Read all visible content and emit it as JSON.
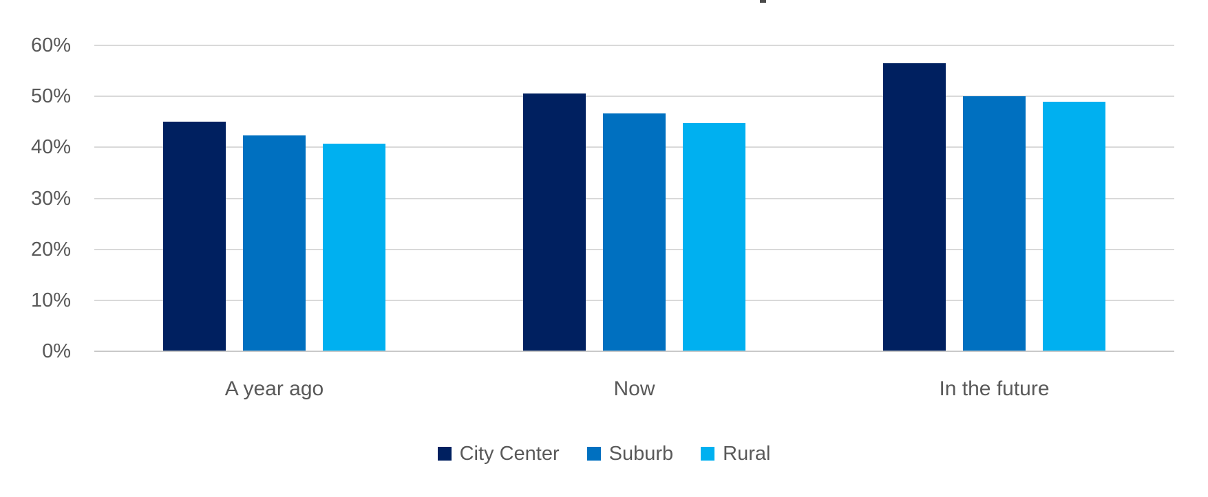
{
  "chart_data": {
    "type": "bar",
    "title": "",
    "categories": [
      "A year ago",
      "Now",
      "In the future"
    ],
    "series": [
      {
        "name": "City Center",
        "color": "#002060",
        "values": [
          45,
          50.6,
          56.5
        ]
      },
      {
        "name": "Suburb",
        "color": "#0070C0",
        "values": [
          42.3,
          46.6,
          50
        ]
      },
      {
        "name": "Rural",
        "color": "#00B0F0",
        "values": [
          40.7,
          44.8,
          49
        ]
      }
    ],
    "y_axis": {
      "unit": "%",
      "min": 0,
      "max": 60,
      "tick_step": 10,
      "tick_labels": [
        "0%",
        "10%",
        "20%",
        "30%",
        "40%",
        "50%",
        "60%"
      ]
    },
    "grid": true,
    "legend_position": "bottom"
  },
  "colors": {
    "text": "#595959",
    "gridline": "#D9D9D9",
    "axis_line": "#C9C9C9",
    "background": "#FFFFFF"
  }
}
